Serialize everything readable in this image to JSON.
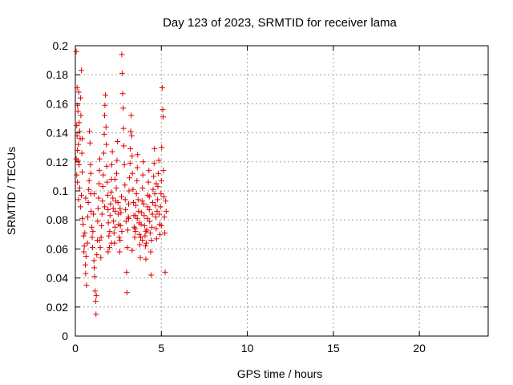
{
  "chart_data": {
    "type": "scatter",
    "title": "Day 123 of 2023, SRMTID for receiver lama",
    "xlabel": "GPS time / hours",
    "ylabel": "SRMTID / TECUs",
    "xlim": [
      0,
      24
    ],
    "ylim": [
      0,
      0.2
    ],
    "xticks": [
      0,
      5,
      10,
      15,
      20
    ],
    "yticks": [
      0,
      0.02,
      0.04,
      0.06,
      0.08,
      0.1,
      0.12,
      0.14,
      0.16,
      0.18,
      0.2
    ],
    "ytick_labels": [
      "0",
      "0.02",
      "0.04",
      "0.06",
      "0.08",
      "0.1",
      "0.12",
      "0.14",
      "0.16",
      "0.18",
      "0.2"
    ],
    "grid": true,
    "marker": "+",
    "color": "#e00000",
    "series": [
      {
        "points": [
          [
            0.05,
            0.196
          ],
          [
            0.1,
            0.171
          ],
          [
            0.12,
            0.159
          ],
          [
            0.15,
            0.155
          ],
          [
            0.2,
            0.168
          ],
          [
            0.08,
            0.145
          ],
          [
            0.1,
            0.138
          ],
          [
            0.12,
            0.128
          ],
          [
            0.15,
            0.121
          ],
          [
            0.18,
            0.132
          ],
          [
            0.22,
            0.147
          ],
          [
            0.25,
            0.141
          ],
          [
            0.28,
            0.136
          ],
          [
            0.3,
            0.164
          ],
          [
            0.32,
            0.152
          ],
          [
            0.35,
            0.183
          ],
          [
            0.38,
            0.126
          ],
          [
            0.4,
            0.113
          ],
          [
            0.05,
            0.122
          ],
          [
            0.08,
            0.111
          ],
          [
            0.12,
            0.106
          ],
          [
            0.18,
            0.094
          ],
          [
            0.22,
            0.118
          ],
          [
            0.25,
            0.102
          ],
          [
            0.3,
            0.089
          ],
          [
            0.35,
            0.097
          ],
          [
            0.4,
            0.081
          ],
          [
            0.45,
            0.077
          ],
          [
            0.48,
            0.069
          ],
          [
            0.5,
            0.058
          ],
          [
            0.52,
            0.062
          ],
          [
            0.55,
            0.071
          ],
          [
            0.58,
            0.049
          ],
          [
            0.6,
            0.043
          ],
          [
            0.62,
            0.055
          ],
          [
            0.65,
            0.035
          ],
          [
            0.7,
            0.064
          ],
          [
            0.72,
            0.082
          ],
          [
            0.75,
            0.092
          ],
          [
            0.78,
            0.101
          ],
          [
            0.8,
            0.107
          ],
          [
            0.82,
            0.141
          ],
          [
            0.85,
            0.133
          ],
          [
            0.88,
            0.118
          ],
          [
            0.9,
            0.098
          ],
          [
            0.92,
            0.086
          ],
          [
            0.95,
            0.075
          ],
          [
            0.98,
            0.068
          ],
          [
            1.0,
            0.061
          ],
          [
            1.02,
            0.072
          ],
          [
            1.05,
            0.084
          ],
          [
            1.08,
            0.052
          ],
          [
            1.1,
            0.047
          ],
          [
            1.12,
            0.041
          ],
          [
            1.15,
            0.031
          ],
          [
            1.18,
            0.024
          ],
          [
            1.2,
            0.015
          ],
          [
            1.22,
            0.028
          ],
          [
            1.25,
            0.056
          ],
          [
            1.28,
            0.066
          ],
          [
            1.3,
            0.079
          ],
          [
            1.32,
            0.088
          ],
          [
            1.35,
            0.095
          ],
          [
            1.38,
            0.105
          ],
          [
            1.4,
            0.114
          ],
          [
            1.42,
            0.122
          ],
          [
            1.45,
            0.061
          ],
          [
            1.48,
            0.054
          ],
          [
            1.5,
            0.068
          ],
          [
            1.52,
            0.076
          ],
          [
            1.55,
            0.084
          ],
          [
            1.58,
            0.093
          ],
          [
            1.6,
            0.103
          ],
          [
            1.62,
            0.111
          ],
          [
            1.65,
            0.126
          ],
          [
            1.68,
            0.139
          ],
          [
            1.7,
            0.152
          ],
          [
            1.72,
            0.159
          ],
          [
            1.75,
            0.166
          ],
          [
            1.78,
            0.144
          ],
          [
            1.8,
            0.132
          ],
          [
            1.82,
            0.117
          ],
          [
            1.85,
            0.106
          ],
          [
            1.88,
            0.097
          ],
          [
            1.9,
            0.087
          ],
          [
            1.92,
            0.078
          ],
          [
            1.95,
            0.069
          ],
          [
            1.98,
            0.061
          ],
          [
            2.0,
            0.072
          ],
          [
            2.02,
            0.083
          ],
          [
            2.05,
            0.091
          ],
          [
            2.08,
            0.099
          ],
          [
            2.1,
            0.108
          ],
          [
            2.12,
            0.118
          ],
          [
            2.15,
            0.127
          ],
          [
            2.18,
            0.095
          ],
          [
            2.2,
            0.088
          ],
          [
            2.22,
            0.079
          ],
          [
            2.25,
            0.071
          ],
          [
            2.28,
            0.064
          ],
          [
            2.3,
            0.075
          ],
          [
            2.32,
            0.086
          ],
          [
            2.35,
            0.093
          ],
          [
            2.38,
            0.102
          ],
          [
            2.4,
            0.112
          ],
          [
            2.42,
            0.121
          ],
          [
            2.45,
            0.134
          ],
          [
            2.48,
            0.092
          ],
          [
            2.5,
            0.084
          ],
          [
            2.52,
            0.077
          ],
          [
            2.55,
            0.068
          ],
          [
            2.58,
            0.058
          ],
          [
            2.6,
            0.066
          ],
          [
            2.62,
            0.076
          ],
          [
            2.65,
            0.085
          ],
          [
            2.68,
            0.096
          ],
          [
            2.7,
            0.194
          ],
          [
            2.72,
            0.181
          ],
          [
            2.75,
            0.167
          ],
          [
            2.78,
            0.157
          ],
          [
            2.8,
            0.143
          ],
          [
            2.82,
            0.131
          ],
          [
            2.85,
            0.118
          ],
          [
            2.88,
            0.104
          ],
          [
            2.9,
            0.094
          ],
          [
            2.92,
            0.087
          ],
          [
            2.95,
            0.079
          ],
          [
            2.98,
            0.044
          ],
          [
            3.0,
            0.03
          ],
          [
            3.02,
            0.061
          ],
          [
            3.05,
            0.073
          ],
          [
            3.08,
            0.082
          ],
          [
            3.1,
            0.091
          ],
          [
            3.12,
            0.1
          ],
          [
            3.15,
            0.109
          ],
          [
            3.18,
            0.119
          ],
          [
            3.2,
            0.129
          ],
          [
            3.22,
            0.141
          ],
          [
            3.25,
            0.152
          ],
          [
            3.28,
            0.138
          ],
          [
            3.3,
            0.124
          ],
          [
            3.32,
            0.112
          ],
          [
            3.35,
            0.101
          ],
          [
            3.38,
            0.092
          ],
          [
            3.4,
            0.083
          ],
          [
            3.42,
            0.075
          ],
          [
            3.45,
            0.068
          ],
          [
            3.48,
            0.074
          ],
          [
            3.5,
            0.083
          ],
          [
            3.52,
            0.09
          ],
          [
            3.55,
            0.098
          ],
          [
            3.58,
            0.107
          ],
          [
            3.6,
            0.116
          ],
          [
            3.62,
            0.125
          ],
          [
            3.65,
            0.094
          ],
          [
            3.68,
            0.086
          ],
          [
            3.7,
            0.078
          ],
          [
            3.72,
            0.07
          ],
          [
            3.75,
            0.063
          ],
          [
            3.78,
            0.054
          ],
          [
            3.8,
            0.068
          ],
          [
            3.82,
            0.077
          ],
          [
            3.85,
            0.085
          ],
          [
            3.88,
            0.093
          ],
          [
            3.9,
            0.102
          ],
          [
            3.92,
            0.111
          ],
          [
            3.95,
            0.12
          ],
          [
            3.98,
            0.091
          ],
          [
            4.0,
            0.083
          ],
          [
            4.02,
            0.076
          ],
          [
            4.05,
            0.069
          ],
          [
            4.08,
            0.062
          ],
          [
            4.1,
            0.053
          ],
          [
            4.12,
            0.064
          ],
          [
            4.15,
            0.073
          ],
          [
            4.18,
            0.081
          ],
          [
            4.2,
            0.089
          ],
          [
            4.22,
            0.097
          ],
          [
            4.25,
            0.106
          ],
          [
            4.28,
            0.114
          ],
          [
            4.3,
            0.087
          ],
          [
            4.32,
            0.079
          ],
          [
            4.35,
            0.071
          ],
          [
            4.38,
            0.058
          ],
          [
            4.4,
            0.042
          ],
          [
            4.42,
            0.066
          ],
          [
            4.45,
            0.075
          ],
          [
            4.48,
            0.084
          ],
          [
            4.5,
            0.092
          ],
          [
            4.52,
            0.101
          ],
          [
            4.55,
            0.11
          ],
          [
            4.58,
            0.119
          ],
          [
            4.6,
            0.129
          ],
          [
            4.62,
            0.098
          ],
          [
            4.65,
            0.09
          ],
          [
            4.68,
            0.082
          ],
          [
            4.7,
            0.074
          ],
          [
            4.72,
            0.067
          ],
          [
            4.75,
            0.086
          ],
          [
            4.78,
            0.094
          ],
          [
            4.8,
            0.103
          ],
          [
            4.82,
            0.112
          ],
          [
            4.85,
            0.121
          ],
          [
            4.88,
            0.084
          ],
          [
            4.9,
            0.077
          ],
          [
            4.92,
            0.07
          ],
          [
            4.95,
            0.089
          ],
          [
            4.98,
            0.098
          ],
          [
            5.0,
            0.107
          ],
          [
            5.02,
            0.13
          ],
          [
            5.05,
            0.171
          ],
          [
            5.08,
            0.156
          ],
          [
            5.1,
            0.151
          ],
          [
            5.12,
            0.114
          ],
          [
            5.15,
            0.096
          ],
          [
            5.18,
            0.082
          ],
          [
            5.2,
            0.071
          ],
          [
            5.22,
            0.044
          ],
          [
            5.25,
            0.093
          ],
          [
            5.28,
            0.086
          ],
          [
            0.6,
            0.095
          ],
          [
            0.9,
            0.112
          ],
          [
            1.4,
            0.066
          ],
          [
            1.9,
            0.058
          ],
          [
            2.3,
            0.108
          ],
          [
            2.6,
            0.088
          ],
          [
            3.1,
            0.081
          ],
          [
            3.5,
            0.072
          ],
          [
            3.9,
            0.066
          ],
          [
            4.3,
            0.096
          ],
          [
            4.7,
            0.105
          ],
          [
            5.0,
            0.076
          ],
          [
            1.1,
            0.098
          ],
          [
            2.1,
            0.064
          ],
          [
            3.3,
            0.059
          ],
          [
            4.1,
            0.072
          ],
          [
            2.7,
            0.072
          ],
          [
            1.7,
            0.089
          ],
          [
            0.4,
            0.136
          ],
          [
            3.6,
            0.081
          ]
        ]
      }
    ]
  }
}
